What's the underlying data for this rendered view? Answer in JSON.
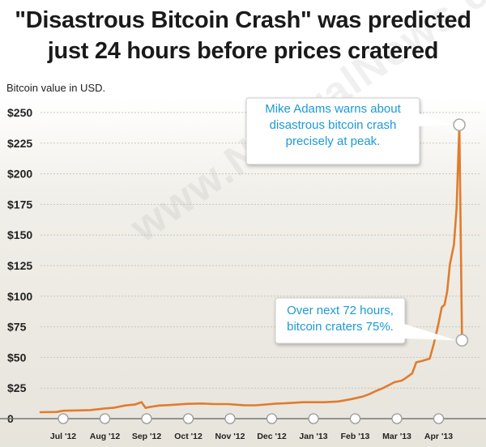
{
  "header": {
    "title_line1": "\"Disastrous Bitcoin Crash\" was predicted",
    "title_line2": "just 24 hours before prices cratered"
  },
  "watermark": "www.NaturalNews.com",
  "callouts": {
    "peak": [
      "Mike Adams warns about",
      "disastrous bitcoin crash",
      "precisely at peak."
    ],
    "crash": [
      "Over next 72 hours,",
      "bitcoin craters 75%."
    ]
  },
  "colors": {
    "line": "#e07c2e",
    "callout_text": "#1c9ad6",
    "gridline": "#c9c5bb",
    "axis": "#777777"
  },
  "chart_data": {
    "type": "line",
    "title": "\"Disastrous Bitcoin Crash\" was predicted just 24 hours before prices cratered",
    "ylabel": "Bitcoin value in USD.",
    "xlabel": "",
    "ylim": [
      0,
      250
    ],
    "y_ticks": [
      0,
      25,
      50,
      75,
      100,
      125,
      150,
      175,
      200,
      225,
      250
    ],
    "y_tick_labels": [
      "0",
      "$25",
      "$50",
      "$75",
      "$100",
      "$125",
      "$150",
      "$175",
      "$200",
      "$225",
      "$250"
    ],
    "x_tick_labels": [
      "Jul '12",
      "Aug '12",
      "Sep '12",
      "Oct '12",
      "Nov '12",
      "Dec '12",
      "Jan '13",
      "Feb '13",
      "Mar '13",
      "Apr '13"
    ],
    "x_range": [
      "2012-06-03",
      "2013-04-25"
    ],
    "grid": true,
    "series": [
      {
        "points": [
          [
            "2012-06-03",
            5.3
          ],
          [
            "2012-06-15",
            5.5
          ],
          [
            "2012-06-20",
            6.5
          ],
          [
            "2012-06-28",
            6.7
          ],
          [
            "2012-07-10",
            7.0
          ],
          [
            "2012-07-20",
            8.3
          ],
          [
            "2012-07-28",
            9.0
          ],
          [
            "2012-08-05",
            10.8
          ],
          [
            "2012-08-12",
            11.5
          ],
          [
            "2012-08-17",
            13.5
          ],
          [
            "2012-08-20",
            8.8
          ],
          [
            "2012-08-23",
            9.5
          ],
          [
            "2012-08-30",
            10.7
          ],
          [
            "2012-09-08",
            11.2
          ],
          [
            "2012-09-20",
            12.1
          ],
          [
            "2012-10-01",
            12.4
          ],
          [
            "2012-10-09",
            12.0
          ],
          [
            "2012-10-20",
            11.9
          ],
          [
            "2012-11-01",
            11.0
          ],
          [
            "2012-11-10",
            10.9
          ],
          [
            "2012-11-25",
            12.3
          ],
          [
            "2012-12-01",
            12.5
          ],
          [
            "2012-12-15",
            13.4
          ],
          [
            "2012-12-31",
            13.4
          ],
          [
            "2013-01-10",
            14.0
          ],
          [
            "2013-01-20",
            16.0
          ],
          [
            "2013-01-28",
            18.0
          ],
          [
            "2013-02-02",
            20.0
          ],
          [
            "2013-02-08",
            23.0
          ],
          [
            "2013-02-12",
            24.8
          ],
          [
            "2013-02-16",
            27.0
          ],
          [
            "2013-02-21",
            29.8
          ],
          [
            "2013-02-26",
            31.0
          ],
          [
            "2013-03-01",
            33.0
          ],
          [
            "2013-03-06",
            37.0
          ],
          [
            "2013-03-09",
            46.0
          ],
          [
            "2013-03-13",
            47.0
          ],
          [
            "2013-03-19",
            49.0
          ],
          [
            "2013-03-22",
            61.0
          ],
          [
            "2013-03-25",
            75.0
          ],
          [
            "2013-03-28",
            91.0
          ],
          [
            "2013-03-30",
            93.0
          ],
          [
            "2013-04-01",
            104.0
          ],
          [
            "2013-04-03",
            126.0
          ],
          [
            "2013-04-06",
            142.0
          ],
          [
            "2013-04-08",
            172.0
          ],
          [
            "2013-04-10",
            240.0
          ],
          [
            "2013-04-12",
            64.0
          ]
        ]
      }
    ],
    "annotations": [
      {
        "date": "2013-04-10",
        "value": 240,
        "text": "Mike Adams warns about disastrous bitcoin crash precisely at peak."
      },
      {
        "date": "2013-04-12",
        "value": 64,
        "text": "Over next 72 hours, bitcoin craters 75%."
      }
    ]
  }
}
